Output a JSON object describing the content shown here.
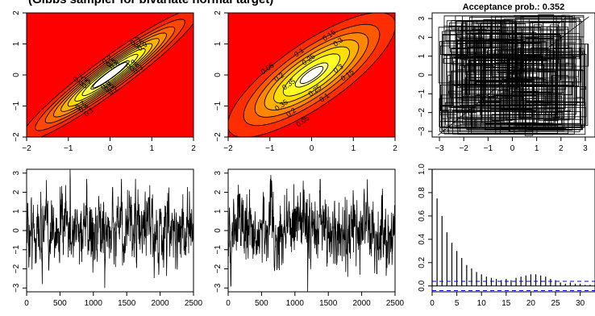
{
  "figure": {
    "top_title": "(Gibbs sampler for bivariate normal target)",
    "colors": {
      "background_red": "#ff0000",
      "contour_line": "#000000",
      "trace_line": "#000000",
      "ci_line": "#0000ff"
    }
  },
  "chart_data": [
    {
      "id": "target-density",
      "type": "contour",
      "title": "",
      "xlabel": "",
      "ylabel": "",
      "xlim": [
        -2,
        2
      ],
      "ylim": [
        -2,
        2
      ],
      "x_ticks": [
        -2,
        -1,
        0,
        1,
        2
      ],
      "y_ticks": [
        -2,
        -1,
        0,
        1,
        2
      ],
      "correlation": 0.95,
      "colormap": "heat (red to white)",
      "contour_levels": [
        0.1,
        0.2,
        0.3,
        0.4,
        0.5,
        0.6,
        0.7,
        0.8,
        0.9
      ]
    },
    {
      "id": "proposal-density",
      "type": "contour",
      "title": "",
      "xlabel": "",
      "ylabel": "",
      "xlim": [
        -2,
        2
      ],
      "ylim": [
        -2,
        2
      ],
      "x_ticks": [
        -2,
        -1,
        0,
        1,
        2
      ],
      "y_ticks": [
        -2,
        -1,
        0,
        1,
        2
      ],
      "correlation": 0.8,
      "colormap": "heat (red to white)",
      "contour_levels": [
        0.05,
        0.1,
        0.15,
        0.2,
        0.25,
        0.3,
        0.35
      ]
    },
    {
      "id": "sample-path",
      "type": "line",
      "title": "Acceptance prob.:  0.352",
      "xlabel": "",
      "ylabel": "",
      "xlim": [
        -3.3,
        3.4
      ],
      "ylim": [
        -3.3,
        3.3
      ],
      "x_ticks": [
        -3,
        -2,
        -1,
        0,
        1,
        2,
        3
      ],
      "y_ticks": [
        -3,
        -2,
        -1,
        0,
        1,
        2,
        3
      ],
      "path_endpoints": [
        [
          -3.05,
          -3.2
        ],
        [
          3.15,
          3.1
        ]
      ]
    },
    {
      "id": "trace-x",
      "type": "line",
      "title": "",
      "xlabel": "",
      "ylabel": "",
      "xlim": [
        0,
        2500
      ],
      "ylim": [
        -3.2,
        3.2
      ],
      "x_ticks": [
        0,
        500,
        1000,
        1500,
        2000,
        2500
      ],
      "y_ticks": [
        -3,
        -2,
        -1,
        0,
        1,
        2,
        3
      ],
      "n_iterations": 2500,
      "notable_values": [
        [
          650,
          3.2
        ],
        [
          1170,
          -3.0
        ]
      ]
    },
    {
      "id": "trace-y",
      "type": "line",
      "title": "",
      "xlabel": "",
      "ylabel": "",
      "xlim": [
        0,
        2500
      ],
      "ylim": [
        -3.2,
        3.2
      ],
      "x_ticks": [
        0,
        500,
        1000,
        1500,
        2000,
        2500
      ],
      "y_ticks": [
        -3,
        -2,
        -1,
        0,
        1,
        2,
        3
      ],
      "n_iterations": 2500,
      "notable_values": [
        [
          640,
          2.9
        ],
        [
          1190,
          -3.2
        ]
      ]
    },
    {
      "id": "acf",
      "type": "bar",
      "title": "",
      "xlabel": "",
      "ylabel": "",
      "xlim": [
        0,
        33
      ],
      "ylim": [
        -0.05,
        1.0
      ],
      "x_ticks": [
        0,
        5,
        10,
        15,
        20,
        25,
        30
      ],
      "y_ticks": [
        0.0,
        0.2,
        0.4,
        0.6,
        0.8,
        1.0
      ],
      "confidence_band": 0.04,
      "lags": [
        0,
        1,
        2,
        3,
        4,
        5,
        6,
        7,
        8,
        9,
        10,
        11,
        12,
        13,
        14,
        15,
        16,
        17,
        18,
        19,
        20,
        21,
        22,
        23,
        24,
        25,
        26,
        27,
        28,
        29,
        30,
        31,
        32,
        33
      ],
      "values": [
        1.0,
        0.75,
        0.6,
        0.46,
        0.37,
        0.3,
        0.24,
        0.18,
        0.15,
        0.12,
        0.1,
        0.08,
        0.07,
        0.06,
        0.05,
        0.06,
        0.05,
        0.07,
        0.08,
        0.09,
        0.1,
        0.1,
        0.09,
        0.08,
        0.06,
        0.05,
        0.03,
        0.02,
        0.03,
        0.02,
        0.02,
        0.01,
        0.01,
        0.02
      ]
    }
  ]
}
